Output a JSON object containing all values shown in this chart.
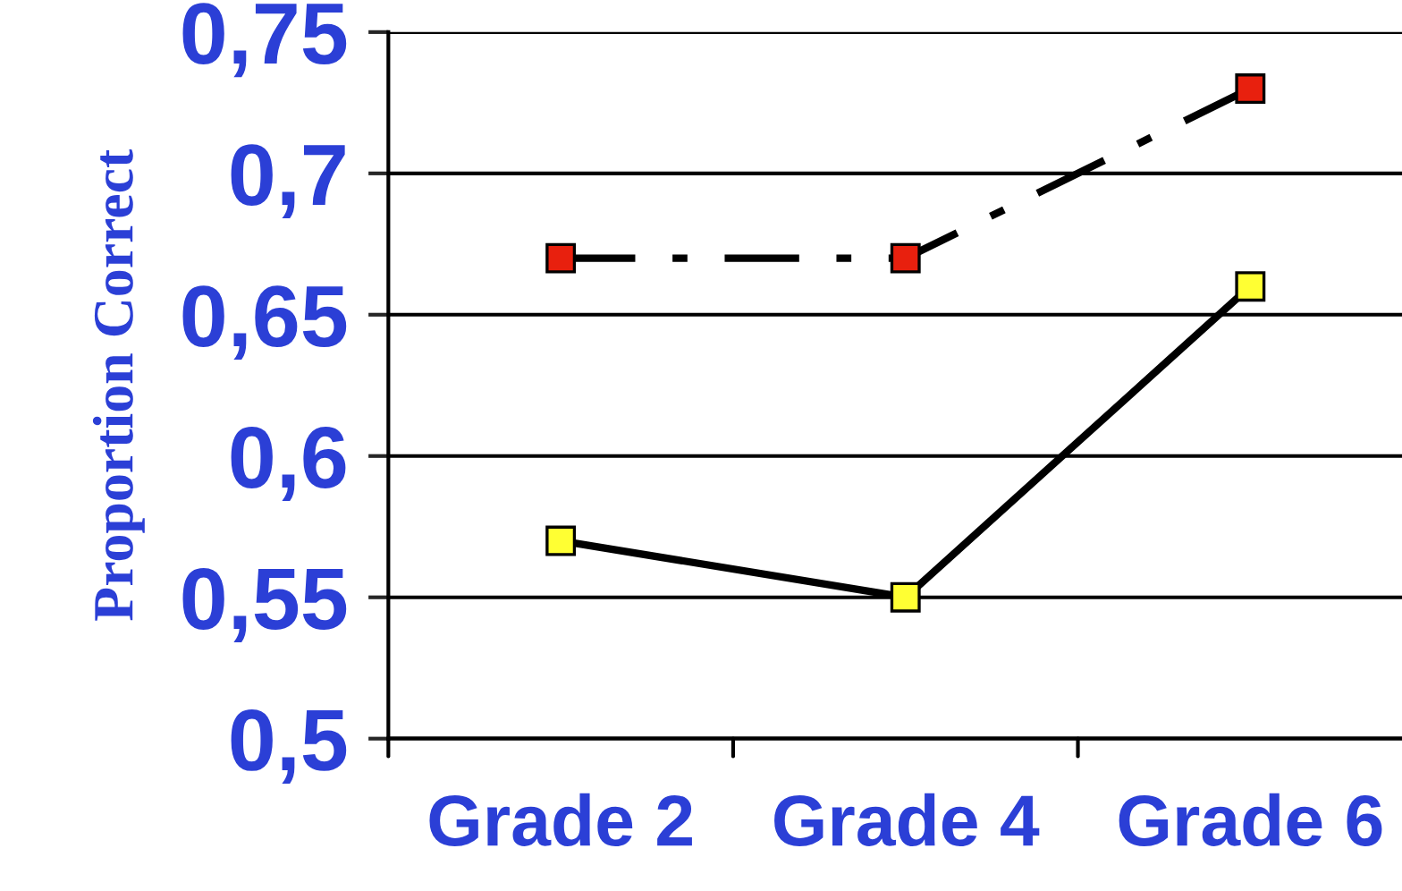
{
  "chart_data": {
    "type": "line",
    "ylabel": "Proportion Correct",
    "categories": [
      "Grade 2",
      "Grade 4",
      "Grade 6"
    ],
    "series": [
      {
        "color": "#e8200e",
        "values": [
          0.67,
          0.67,
          0.73
        ],
        "line_style": "dashdot"
      },
      {
        "color": "#ffff33",
        "values": [
          0.57,
          0.55,
          0.66
        ],
        "line_style": "solid"
      }
    ],
    "ylim": [
      0.5,
      0.75
    ],
    "yticks": [
      {
        "value": 0.5,
        "label": "0,5"
      },
      {
        "value": 0.55,
        "label": "0,55"
      },
      {
        "value": 0.6,
        "label": "0,6"
      },
      {
        "value": 0.65,
        "label": "0,65"
      },
      {
        "value": 0.7,
        "label": "0,7"
      },
      {
        "value": 0.75,
        "label": "0,75"
      }
    ],
    "grid": "y",
    "marker": "square"
  }
}
